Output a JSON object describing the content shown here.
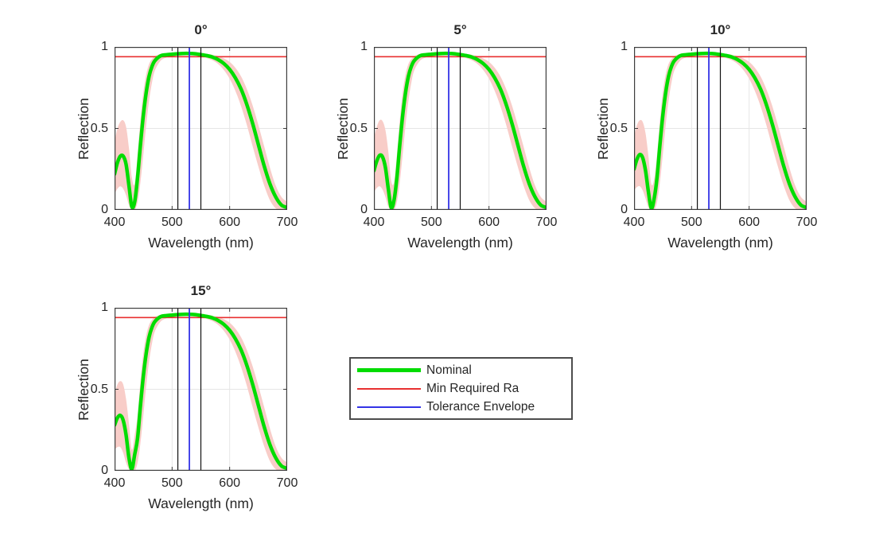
{
  "figure": {
    "background": "#ffffff"
  },
  "colors": {
    "nominal": "#00dc00",
    "envelope_fill": "#f8cdc8",
    "min_required": "#e83030",
    "tolerance_marker": "#3333e6",
    "band_edge_line": "#111111",
    "axis": "#3d3d3d",
    "grid": "#e6e6e6",
    "text": "#262626",
    "legend_border": "#4d4d4d"
  },
  "legend": {
    "items": [
      {
        "label": "Nominal",
        "color_key": "nominal",
        "thick": true
      },
      {
        "label": "Min Required Ra",
        "color_key": "min_required",
        "thick": false
      },
      {
        "label": "Tolerance Envelope",
        "color_key": "tolerance_marker",
        "thick": false
      }
    ]
  },
  "chart_data": [
    {
      "type": "line",
      "title": "0°",
      "xlabel": "Wavelength (nm)",
      "ylabel": "Reflection",
      "xlim": [
        400,
        700
      ],
      "ylim": [
        0,
        1
      ],
      "xticks": [
        400,
        500,
        600,
        700
      ],
      "xtick_labels": [
        "400",
        "500",
        "600",
        "700"
      ],
      "yticks": [
        0,
        0.5,
        1
      ],
      "ytick_labels": [
        "0",
        "0.5",
        "1"
      ],
      "grid": true,
      "x": [
        400,
        405,
        410,
        415,
        420,
        425,
        430,
        435,
        440,
        445,
        450,
        455,
        460,
        465,
        470,
        480,
        490,
        500,
        510,
        520,
        530,
        540,
        550,
        560,
        570,
        580,
        590,
        600,
        610,
        620,
        630,
        640,
        650,
        660,
        670,
        680,
        690,
        700
      ],
      "series": [
        {
          "name": "Nominal",
          "values": [
            0.22,
            0.29,
            0.33,
            0.33,
            0.28,
            0.15,
            0.02,
            0.05,
            0.2,
            0.4,
            0.58,
            0.72,
            0.82,
            0.88,
            0.915,
            0.945,
            0.952,
            0.955,
            0.958,
            0.96,
            0.96,
            0.958,
            0.953,
            0.947,
            0.938,
            0.922,
            0.898,
            0.862,
            0.81,
            0.74,
            0.645,
            0.53,
            0.4,
            0.27,
            0.16,
            0.08,
            0.03,
            0.015
          ]
        }
      ],
      "envelope": {
        "upper": [
          0.42,
          0.5,
          0.54,
          0.55,
          0.51,
          0.38,
          0.2,
          0.16,
          0.34,
          0.55,
          0.72,
          0.83,
          0.895,
          0.925,
          0.942,
          0.958,
          0.962,
          0.965,
          0.966,
          0.967,
          0.967,
          0.966,
          0.963,
          0.958,
          0.952,
          0.944,
          0.93,
          0.908,
          0.872,
          0.818,
          0.74,
          0.64,
          0.52,
          0.39,
          0.26,
          0.15,
          0.08,
          0.05
        ],
        "lower": [
          0.1,
          0.13,
          0.145,
          0.13,
          0.09,
          0.03,
          0.0,
          0.0,
          0.05,
          0.17,
          0.34,
          0.52,
          0.67,
          0.78,
          0.855,
          0.915,
          0.935,
          0.942,
          0.947,
          0.95,
          0.95,
          0.947,
          0.941,
          0.932,
          0.918,
          0.895,
          0.858,
          0.805,
          0.73,
          0.635,
          0.52,
          0.39,
          0.265,
          0.15,
          0.06,
          0.01,
          0.0,
          0.0
        ]
      },
      "min_required_ra": 0.94,
      "vlines_band_edges": [
        510,
        550
      ],
      "vline_center": 530
    },
    {
      "type": "line",
      "title": "5°",
      "xlabel": "Wavelength (nm)",
      "ylabel": "Reflection",
      "xlim": [
        400,
        700
      ],
      "ylim": [
        0,
        1
      ],
      "xticks": [
        400,
        500,
        600,
        700
      ],
      "xtick_labels": [
        "400",
        "500",
        "600",
        "700"
      ],
      "yticks": [
        0,
        0.5,
        1
      ],
      "ytick_labels": [
        "0",
        "0.5",
        "1"
      ],
      "grid": true,
      "x": [
        400,
        405,
        410,
        415,
        420,
        425,
        430,
        435,
        440,
        445,
        450,
        455,
        460,
        465,
        470,
        480,
        490,
        500,
        510,
        520,
        530,
        540,
        550,
        560,
        570,
        580,
        590,
        600,
        610,
        620,
        630,
        640,
        650,
        660,
        670,
        680,
        690,
        700
      ],
      "series": [
        {
          "name": "Nominal",
          "values": [
            0.24,
            0.3,
            0.335,
            0.325,
            0.26,
            0.13,
            0.015,
            0.06,
            0.2,
            0.4,
            0.58,
            0.72,
            0.82,
            0.88,
            0.915,
            0.945,
            0.952,
            0.955,
            0.958,
            0.96,
            0.96,
            0.958,
            0.953,
            0.947,
            0.938,
            0.922,
            0.898,
            0.862,
            0.81,
            0.74,
            0.645,
            0.53,
            0.4,
            0.27,
            0.16,
            0.08,
            0.03,
            0.015
          ]
        }
      ],
      "envelope": {
        "upper": [
          0.44,
          0.51,
          0.55,
          0.545,
          0.49,
          0.36,
          0.18,
          0.17,
          0.34,
          0.55,
          0.72,
          0.83,
          0.895,
          0.925,
          0.942,
          0.958,
          0.962,
          0.965,
          0.966,
          0.967,
          0.967,
          0.966,
          0.963,
          0.958,
          0.952,
          0.944,
          0.93,
          0.908,
          0.872,
          0.818,
          0.74,
          0.64,
          0.52,
          0.39,
          0.26,
          0.15,
          0.08,
          0.05
        ],
        "lower": [
          0.11,
          0.135,
          0.145,
          0.125,
          0.08,
          0.02,
          0.0,
          0.0,
          0.05,
          0.17,
          0.34,
          0.52,
          0.67,
          0.78,
          0.855,
          0.915,
          0.935,
          0.942,
          0.947,
          0.95,
          0.95,
          0.947,
          0.941,
          0.932,
          0.918,
          0.895,
          0.858,
          0.805,
          0.73,
          0.635,
          0.52,
          0.39,
          0.265,
          0.15,
          0.06,
          0.01,
          0.0,
          0.0
        ]
      },
      "min_required_ra": 0.94,
      "vlines_band_edges": [
        510,
        550
      ],
      "vline_center": 530
    },
    {
      "type": "line",
      "title": "10°",
      "xlabel": "Wavelength (nm)",
      "ylabel": "Reflection",
      "xlim": [
        400,
        700
      ],
      "ylim": [
        0,
        1
      ],
      "xticks": [
        400,
        500,
        600,
        700
      ],
      "xtick_labels": [
        "400",
        "500",
        "600",
        "700"
      ],
      "yticks": [
        0,
        0.5,
        1
      ],
      "ytick_labels": [
        "0",
        "0.5",
        "1"
      ],
      "grid": true,
      "x": [
        400,
        405,
        410,
        415,
        420,
        425,
        430,
        435,
        440,
        445,
        450,
        455,
        460,
        465,
        470,
        480,
        490,
        500,
        510,
        520,
        530,
        540,
        550,
        560,
        570,
        580,
        590,
        600,
        610,
        620,
        630,
        640,
        650,
        660,
        670,
        680,
        690,
        700
      ],
      "series": [
        {
          "name": "Nominal",
          "values": [
            0.25,
            0.31,
            0.34,
            0.32,
            0.24,
            0.11,
            0.01,
            0.07,
            0.2,
            0.4,
            0.58,
            0.72,
            0.82,
            0.88,
            0.915,
            0.945,
            0.952,
            0.955,
            0.958,
            0.96,
            0.96,
            0.958,
            0.953,
            0.947,
            0.938,
            0.922,
            0.898,
            0.862,
            0.81,
            0.74,
            0.645,
            0.53,
            0.4,
            0.27,
            0.16,
            0.08,
            0.03,
            0.015
          ]
        }
      ],
      "envelope": {
        "upper": [
          0.45,
          0.52,
          0.55,
          0.54,
          0.47,
          0.33,
          0.16,
          0.19,
          0.34,
          0.55,
          0.72,
          0.83,
          0.895,
          0.925,
          0.942,
          0.958,
          0.962,
          0.965,
          0.966,
          0.967,
          0.967,
          0.966,
          0.963,
          0.958,
          0.952,
          0.944,
          0.93,
          0.908,
          0.872,
          0.818,
          0.74,
          0.64,
          0.52,
          0.39,
          0.26,
          0.15,
          0.08,
          0.05
        ],
        "lower": [
          0.12,
          0.14,
          0.145,
          0.12,
          0.07,
          0.015,
          0.0,
          0.0,
          0.05,
          0.17,
          0.34,
          0.52,
          0.67,
          0.78,
          0.855,
          0.915,
          0.935,
          0.942,
          0.947,
          0.95,
          0.95,
          0.947,
          0.941,
          0.932,
          0.918,
          0.895,
          0.858,
          0.805,
          0.73,
          0.635,
          0.52,
          0.39,
          0.265,
          0.15,
          0.06,
          0.01,
          0.0,
          0.0
        ]
      },
      "min_required_ra": 0.94,
      "vlines_band_edges": [
        510,
        550
      ],
      "vline_center": 530
    },
    {
      "type": "line",
      "title": "15°",
      "xlabel": "Wavelength (nm)",
      "ylabel": "Reflection",
      "xlim": [
        400,
        700
      ],
      "ylim": [
        0,
        1
      ],
      "xticks": [
        400,
        500,
        600,
        700
      ],
      "xtick_labels": [
        "400",
        "500",
        "600",
        "700"
      ],
      "yticks": [
        0,
        0.5,
        1
      ],
      "ytick_labels": [
        "0",
        "0.5",
        "1"
      ],
      "grid": true,
      "x": [
        400,
        405,
        410,
        415,
        420,
        425,
        430,
        435,
        440,
        445,
        450,
        455,
        460,
        465,
        470,
        480,
        490,
        500,
        510,
        520,
        530,
        540,
        550,
        560,
        570,
        580,
        590,
        600,
        610,
        620,
        630,
        640,
        650,
        660,
        670,
        680,
        690,
        700
      ],
      "series": [
        {
          "name": "Nominal",
          "values": [
            0.28,
            0.325,
            0.34,
            0.31,
            0.22,
            0.08,
            0.01,
            0.1,
            0.2,
            0.4,
            0.58,
            0.72,
            0.82,
            0.88,
            0.915,
            0.945,
            0.952,
            0.955,
            0.958,
            0.96,
            0.96,
            0.958,
            0.953,
            0.947,
            0.938,
            0.922,
            0.898,
            0.862,
            0.81,
            0.74,
            0.645,
            0.53,
            0.4,
            0.27,
            0.16,
            0.08,
            0.03,
            0.015
          ]
        }
      ],
      "envelope": {
        "upper": [
          0.47,
          0.53,
          0.55,
          0.53,
          0.44,
          0.29,
          0.13,
          0.22,
          0.34,
          0.55,
          0.72,
          0.83,
          0.895,
          0.925,
          0.942,
          0.958,
          0.962,
          0.965,
          0.966,
          0.967,
          0.967,
          0.966,
          0.963,
          0.958,
          0.952,
          0.944,
          0.93,
          0.908,
          0.872,
          0.818,
          0.74,
          0.64,
          0.52,
          0.39,
          0.26,
          0.15,
          0.08,
          0.05
        ],
        "lower": [
          0.13,
          0.145,
          0.145,
          0.11,
          0.05,
          0.01,
          0.0,
          0.0,
          0.05,
          0.17,
          0.34,
          0.52,
          0.67,
          0.78,
          0.855,
          0.915,
          0.935,
          0.942,
          0.947,
          0.95,
          0.95,
          0.947,
          0.941,
          0.932,
          0.918,
          0.895,
          0.858,
          0.805,
          0.73,
          0.635,
          0.52,
          0.39,
          0.265,
          0.15,
          0.06,
          0.01,
          0.0,
          0.0
        ]
      },
      "min_required_ra": 0.94,
      "vlines_band_edges": [
        510,
        550
      ],
      "vline_center": 530
    }
  ]
}
